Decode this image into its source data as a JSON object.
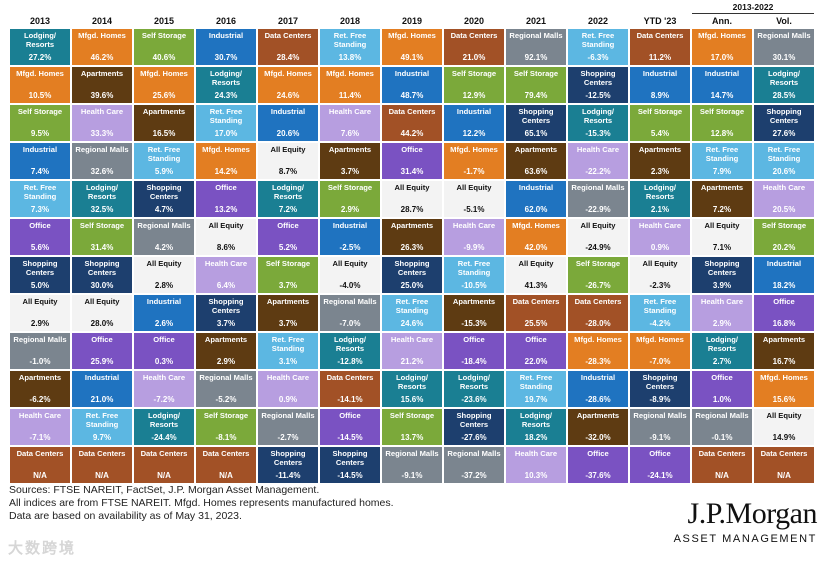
{
  "chart_data": {
    "type": "table",
    "group_header": "2013-2022",
    "columns": [
      "2013",
      "2014",
      "2015",
      "2016",
      "2017",
      "2018",
      "2019",
      "2020",
      "2021",
      "2022",
      "YTD '23",
      "Ann.",
      "Vol."
    ],
    "colors": {
      "Lodging/ Resorts": "#1a7f93",
      "Mfgd. Homes": "#e37e22",
      "Self Storage": "#7ba93a",
      "Industrial": "#1f73c0",
      "Ret. Free Standing": "#5cb7e2",
      "Office": "#7a52c2",
      "Shopping Centers": "#1d3f6e",
      "All Equity": "#f3f3f3",
      "Regional Malls": "#7b858f",
      "Apartments": "#5e3b12",
      "Health Care": "#b79ee0",
      "Data Centers": "#a25126"
    },
    "columns_data": [
      {
        "header": "2013",
        "cells": [
          {
            "name": "Lodging/ Resorts",
            "value": "27.2%"
          },
          {
            "name": "Mfgd. Homes",
            "value": "10.5%"
          },
          {
            "name": "Self Storage",
            "value": "9.5%"
          },
          {
            "name": "Industrial",
            "value": "7.4%"
          },
          {
            "name": "Ret. Free Standing",
            "value": "7.3%"
          },
          {
            "name": "Office",
            "value": "5.6%"
          },
          {
            "name": "Shopping Centers",
            "value": "5.0%"
          },
          {
            "name": "All Equity",
            "value": "2.9%"
          },
          {
            "name": "Regional Malls",
            "value": "-1.0%"
          },
          {
            "name": "Apartments",
            "value": "-6.2%"
          },
          {
            "name": "Health Care",
            "value": "-7.1%"
          },
          {
            "name": "Data Centers",
            "value": "N/A"
          }
        ]
      },
      {
        "header": "2014",
        "cells": [
          {
            "name": "Mfgd. Homes",
            "value": "46.2%"
          },
          {
            "name": "Apartments",
            "value": "39.6%"
          },
          {
            "name": "Health Care",
            "value": "33.3%"
          },
          {
            "name": "Regional Malls",
            "value": "32.6%"
          },
          {
            "name": "Lodging/ Resorts",
            "value": "32.5%"
          },
          {
            "name": "Self Storage",
            "value": "31.4%"
          },
          {
            "name": "Shopping Centers",
            "value": "30.0%"
          },
          {
            "name": "All Equity",
            "value": "28.0%"
          },
          {
            "name": "Office",
            "value": "25.9%"
          },
          {
            "name": "Industrial",
            "value": "21.0%"
          },
          {
            "name": "Ret. Free Standing",
            "value": "9.7%"
          },
          {
            "name": "Data Centers",
            "value": "N/A"
          }
        ]
      },
      {
        "header": "2015",
        "cells": [
          {
            "name": "Self Storage",
            "value": "40.6%"
          },
          {
            "name": "Mfgd. Homes",
            "value": "25.6%"
          },
          {
            "name": "Apartments",
            "value": "16.5%"
          },
          {
            "name": "Ret. Free Standing",
            "value": "5.9%"
          },
          {
            "name": "Shopping Centers",
            "value": "4.7%"
          },
          {
            "name": "Regional Malls",
            "value": "4.2%"
          },
          {
            "name": "All Equity",
            "value": "2.8%"
          },
          {
            "name": "Industrial",
            "value": "2.6%"
          },
          {
            "name": "Office",
            "value": "0.3%"
          },
          {
            "name": "Health Care",
            "value": "-7.2%"
          },
          {
            "name": "Lodging/ Resorts",
            "value": "-24.4%"
          },
          {
            "name": "Data Centers",
            "value": "N/A"
          }
        ]
      },
      {
        "header": "2016",
        "cells": [
          {
            "name": "Industrial",
            "value": "30.7%"
          },
          {
            "name": "Lodging/ Resorts",
            "value": "24.3%"
          },
          {
            "name": "Ret. Free Standing",
            "value": "17.0%"
          },
          {
            "name": "Mfgd. Homes",
            "value": "14.2%"
          },
          {
            "name": "Office",
            "value": "13.2%"
          },
          {
            "name": "All Equity",
            "value": "8.6%"
          },
          {
            "name": "Health Care",
            "value": "6.4%"
          },
          {
            "name": "Shopping Centers",
            "value": "3.7%"
          },
          {
            "name": "Apartments",
            "value": "2.9%"
          },
          {
            "name": "Regional Malls",
            "value": "-5.2%"
          },
          {
            "name": "Self Storage",
            "value": "-8.1%"
          },
          {
            "name": "Data Centers",
            "value": "N/A"
          }
        ]
      },
      {
        "header": "2017",
        "cells": [
          {
            "name": "Data Centers",
            "value": "28.4%"
          },
          {
            "name": "Mfgd. Homes",
            "value": "24.6%"
          },
          {
            "name": "Industrial",
            "value": "20.6%"
          },
          {
            "name": "All Equity",
            "value": "8.7%"
          },
          {
            "name": "Lodging/ Resorts",
            "value": "7.2%"
          },
          {
            "name": "Office",
            "value": "5.2%"
          },
          {
            "name": "Self Storage",
            "value": "3.7%"
          },
          {
            "name": "Apartments",
            "value": "3.7%"
          },
          {
            "name": "Ret. Free Standing",
            "value": "3.1%"
          },
          {
            "name": "Health Care",
            "value": "0.9%"
          },
          {
            "name": "Regional Malls",
            "value": "-2.7%"
          },
          {
            "name": "Shopping Centers",
            "value": "-11.4%"
          }
        ]
      },
      {
        "header": "2018",
        "cells": [
          {
            "name": "Ret. Free Standing",
            "value": "13.8%"
          },
          {
            "name": "Mfgd. Homes",
            "value": "11.4%"
          },
          {
            "name": "Health Care",
            "value": "7.6%"
          },
          {
            "name": "Apartments",
            "value": "3.7%"
          },
          {
            "name": "Self Storage",
            "value": "2.9%"
          },
          {
            "name": "Industrial",
            "value": "-2.5%"
          },
          {
            "name": "All Equity",
            "value": "-4.0%"
          },
          {
            "name": "Regional Malls",
            "value": "-7.0%"
          },
          {
            "name": "Lodging/ Resorts",
            "value": "-12.8%"
          },
          {
            "name": "Data Centers",
            "value": "-14.1%"
          },
          {
            "name": "Office",
            "value": "-14.5%"
          },
          {
            "name": "Shopping Centers",
            "value": "-14.5%"
          }
        ]
      },
      {
        "header": "2019",
        "cells": [
          {
            "name": "Mfgd. Homes",
            "value": "49.1%"
          },
          {
            "name": "Industrial",
            "value": "48.7%"
          },
          {
            "name": "Data Centers",
            "value": "44.2%"
          },
          {
            "name": "Office",
            "value": "31.4%"
          },
          {
            "name": "All Equity",
            "value": "28.7%"
          },
          {
            "name": "Apartments",
            "value": "26.3%"
          },
          {
            "name": "Shopping Centers",
            "value": "25.0%"
          },
          {
            "name": "Ret. Free Standing",
            "value": "24.6%"
          },
          {
            "name": "Health Care",
            "value": "21.2%"
          },
          {
            "name": "Lodging/ Resorts",
            "value": "15.6%"
          },
          {
            "name": "Self Storage",
            "value": "13.7%"
          },
          {
            "name": "Regional Malls",
            "value": "-9.1%"
          }
        ]
      },
      {
        "header": "2020",
        "cells": [
          {
            "name": "Data Centers",
            "value": "21.0%"
          },
          {
            "name": "Self Storage",
            "value": "12.9%"
          },
          {
            "name": "Industrial",
            "value": "12.2%"
          },
          {
            "name": "Mfgd. Homes",
            "value": "-1.7%"
          },
          {
            "name": "All Equity",
            "value": "-5.1%"
          },
          {
            "name": "Health Care",
            "value": "-9.9%"
          },
          {
            "name": "Ret. Free Standing",
            "value": "-10.5%"
          },
          {
            "name": "Apartments",
            "value": "-15.3%"
          },
          {
            "name": "Office",
            "value": "-18.4%"
          },
          {
            "name": "Lodging/ Resorts",
            "value": "-23.6%"
          },
          {
            "name": "Shopping Centers",
            "value": "-27.6%"
          },
          {
            "name": "Regional Malls",
            "value": "-37.2%"
          }
        ]
      },
      {
        "header": "2021",
        "cells": [
          {
            "name": "Regional Malls",
            "value": "92.1%"
          },
          {
            "name": "Self Storage",
            "value": "79.4%"
          },
          {
            "name": "Shopping Centers",
            "value": "65.1%"
          },
          {
            "name": "Apartments",
            "value": "63.6%"
          },
          {
            "name": "Industrial",
            "value": "62.0%"
          },
          {
            "name": "Mfgd. Homes",
            "value": "42.0%"
          },
          {
            "name": "All Equity",
            "value": "41.3%"
          },
          {
            "name": "Data Centers",
            "value": "25.5%"
          },
          {
            "name": "Office",
            "value": "22.0%"
          },
          {
            "name": "Ret. Free Standing",
            "value": "19.7%"
          },
          {
            "name": "Lodging/ Resorts",
            "value": "18.2%"
          },
          {
            "name": "Health Care",
            "value": "10.3%"
          }
        ]
      },
      {
        "header": "2022",
        "cells": [
          {
            "name": "Ret. Free Standing",
            "value": "-6.3%"
          },
          {
            "name": "Shopping Centers",
            "value": "-12.5%"
          },
          {
            "name": "Lodging/ Resorts",
            "value": "-15.3%"
          },
          {
            "name": "Health Care",
            "value": "-22.2%"
          },
          {
            "name": "Regional Malls",
            "value": "-22.9%"
          },
          {
            "name": "All Equity",
            "value": "-24.9%"
          },
          {
            "name": "Self Storage",
            "value": "-26.7%"
          },
          {
            "name": "Data Centers",
            "value": "-28.0%"
          },
          {
            "name": "Mfgd. Homes",
            "value": "-28.3%"
          },
          {
            "name": "Industrial",
            "value": "-28.6%"
          },
          {
            "name": "Apartments",
            "value": "-32.0%"
          },
          {
            "name": "Office",
            "value": "-37.6%"
          }
        ]
      },
      {
        "header": "YTD '23",
        "cells": [
          {
            "name": "Data Centers",
            "value": "11.2%"
          },
          {
            "name": "Industrial",
            "value": "8.9%"
          },
          {
            "name": "Self Storage",
            "value": "5.4%"
          },
          {
            "name": "Apartments",
            "value": "2.3%"
          },
          {
            "name": "Lodging/ Resorts",
            "value": "2.1%"
          },
          {
            "name": "Health Care",
            "value": "0.9%"
          },
          {
            "name": "All Equity",
            "value": "-2.3%"
          },
          {
            "name": "Ret. Free Standing",
            "value": "-4.2%"
          },
          {
            "name": "Mfgd. Homes",
            "value": "-7.0%"
          },
          {
            "name": "Shopping Centers",
            "value": "-8.9%"
          },
          {
            "name": "Regional Malls",
            "value": "-9.1%"
          },
          {
            "name": "Office",
            "value": "-24.1%"
          }
        ]
      },
      {
        "header": "Ann.",
        "cells": [
          {
            "name": "Mfgd. Homes",
            "value": "17.0%"
          },
          {
            "name": "Industrial",
            "value": "14.7%"
          },
          {
            "name": "Self Storage",
            "value": "12.8%"
          },
          {
            "name": "Ret. Free Standing",
            "value": "7.9%"
          },
          {
            "name": "Apartments",
            "value": "7.2%"
          },
          {
            "name": "All Equity",
            "value": "7.1%"
          },
          {
            "name": "Shopping Centers",
            "value": "3.9%"
          },
          {
            "name": "Health Care",
            "value": "2.9%"
          },
          {
            "name": "Lodging/ Resorts",
            "value": "2.7%"
          },
          {
            "name": "Office",
            "value": "1.0%"
          },
          {
            "name": "Regional Malls",
            "value": "-0.1%"
          },
          {
            "name": "Data Centers",
            "value": "N/A"
          }
        ]
      },
      {
        "header": "Vol.",
        "cells": [
          {
            "name": "Regional Malls",
            "value": "30.1%"
          },
          {
            "name": "Lodging/ Resorts",
            "value": "28.5%"
          },
          {
            "name": "Shopping Centers",
            "value": "27.6%"
          },
          {
            "name": "Ret. Free Standing",
            "value": "20.6%"
          },
          {
            "name": "Health Care",
            "value": "20.5%"
          },
          {
            "name": "Self Storage",
            "value": "20.2%"
          },
          {
            "name": "Industrial",
            "value": "18.2%"
          },
          {
            "name": "Office",
            "value": "16.8%"
          },
          {
            "name": "Apartments",
            "value": "16.7%"
          },
          {
            "name": "Mfgd. Homes",
            "value": "15.6%"
          },
          {
            "name": "All Equity",
            "value": "14.9%"
          },
          {
            "name": "Data Centers",
            "value": "N/A"
          }
        ]
      }
    ]
  },
  "footer": {
    "line1": "Sources: FTSE NAREIT, FactSet, J.P. Morgan Asset Management.",
    "line2": "All indices are from FTSE NAREIT. Mfgd. Homes represents manufactured homes.",
    "line3": "Data are based on availability as of May 31, 2023."
  },
  "logo": {
    "main": "J.P.Morgan",
    "sub": "ASSET MANAGEMENT"
  },
  "watermark": "大数跨境"
}
